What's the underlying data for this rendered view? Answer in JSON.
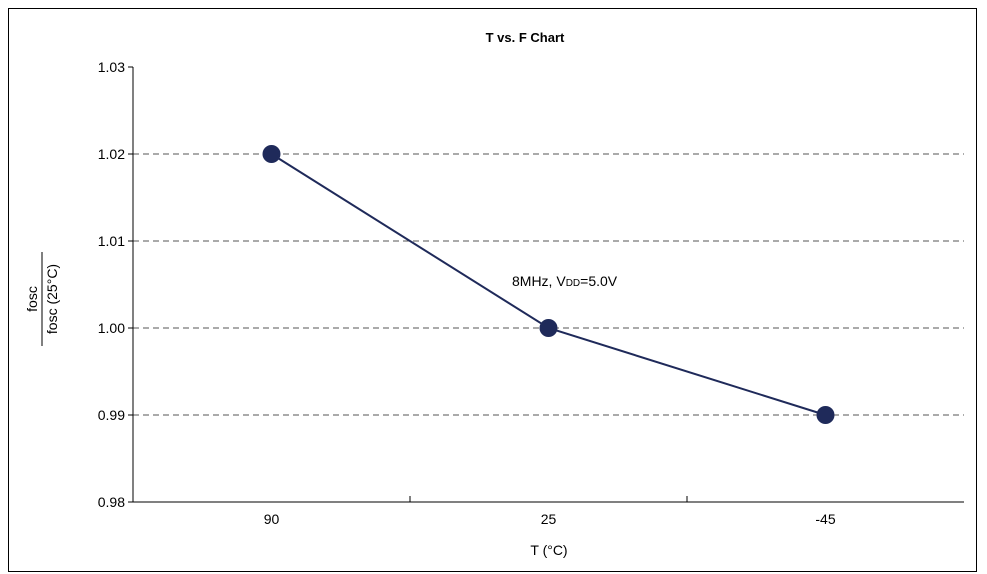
{
  "chart_data": {
    "type": "line",
    "title": "T vs. F Chart",
    "xlabel": "T (°C)",
    "ylabel": {
      "numerator": "fosc",
      "denominator": "fosc (25°C)"
    },
    "categories": [
      "90",
      "25",
      "-45"
    ],
    "series": [
      {
        "values": [
          1.02,
          1.0,
          0.99
        ]
      }
    ],
    "ylim": [
      0.98,
      1.03
    ],
    "yticks": [
      "0.98",
      "0.99",
      "1.00",
      "1.01",
      "1.02",
      "1.03"
    ],
    "grid": "horizontal-dashed",
    "annotation": {
      "prefix": "8MHz, V",
      "subscript": "DD",
      "suffix": "=5.0V"
    },
    "colors": {
      "line": "#1f2a5a",
      "marker": "#1f2a5a",
      "grid": "#555555"
    }
  }
}
